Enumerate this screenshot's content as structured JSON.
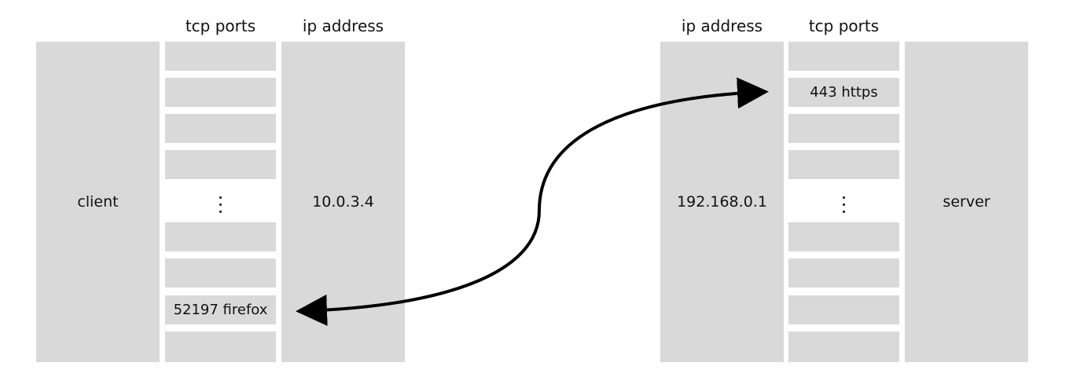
{
  "colors": {
    "panel": "#d9d9d9",
    "background": "#ffffff",
    "text": "#111111",
    "arrow": "#000000"
  },
  "client_side": {
    "host_label": "client",
    "ports_header": "tcp ports",
    "ip_header": "ip address",
    "ip_value": "10.0.3.4",
    "ports": [
      {
        "label": ""
      },
      {
        "label": ""
      },
      {
        "label": ""
      },
      {
        "label": ""
      },
      {
        "label": ":",
        "gap": true
      },
      {
        "label": ""
      },
      {
        "label": ""
      },
      {
        "label": "52197 firefox"
      },
      {
        "label": ""
      }
    ]
  },
  "server_side": {
    "host_label": "server",
    "ports_header": "tcp ports",
    "ip_header": "ip address",
    "ip_value": "192.168.0.1",
    "ports": [
      {
        "label": ""
      },
      {
        "label": "443 https"
      },
      {
        "label": ""
      },
      {
        "label": ""
      },
      {
        "label": ":",
        "gap": true
      },
      {
        "label": ""
      },
      {
        "label": ""
      },
      {
        "label": ""
      },
      {
        "label": ""
      }
    ]
  },
  "connection": {
    "from": "52197 firefox",
    "to": "443 https",
    "bidirectional": true
  }
}
